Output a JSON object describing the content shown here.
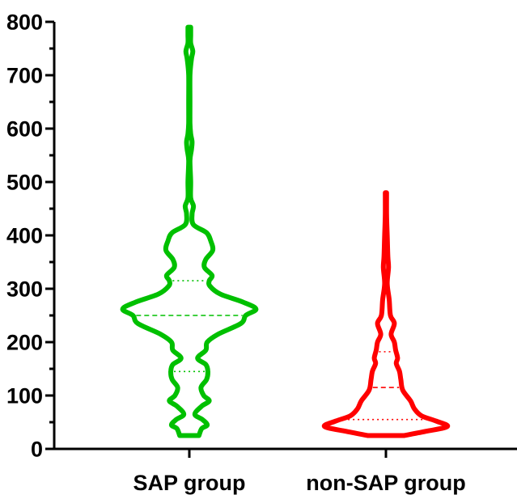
{
  "chart_data": {
    "type": "violin",
    "title": "",
    "xlabel": "",
    "ylabel": "",
    "ylim": [
      0,
      800
    ],
    "yticks": [
      0,
      100,
      200,
      300,
      400,
      500,
      600,
      700,
      800
    ],
    "ytick_labels": [
      "0",
      "100",
      "200",
      "300",
      "400",
      "500",
      "600",
      "700",
      "800"
    ],
    "categories": [
      "SAP group",
      "non-SAP group"
    ],
    "grid": false,
    "legend": "none",
    "series": [
      {
        "category": "SAP group",
        "color": "#00C000",
        "min": 25,
        "max": 790,
        "q1": 145,
        "median": 250,
        "q3": 315,
        "density_profile": [
          [
            25,
            0.14
          ],
          [
            38,
            0.18
          ],
          [
            45,
            0.26
          ],
          [
            55,
            0.19
          ],
          [
            65,
            0.08
          ],
          [
            80,
            0.18
          ],
          [
            90,
            0.29
          ],
          [
            100,
            0.21
          ],
          [
            115,
            0.17
          ],
          [
            130,
            0.25
          ],
          [
            145,
            0.27
          ],
          [
            158,
            0.24
          ],
          [
            170,
            0.12
          ],
          [
            185,
            0.24
          ],
          [
            200,
            0.26
          ],
          [
            215,
            0.42
          ],
          [
            235,
            0.75
          ],
          [
            250,
            0.82
          ],
          [
            262,
            0.97
          ],
          [
            275,
            0.78
          ],
          [
            290,
            0.45
          ],
          [
            305,
            0.3
          ],
          [
            315,
            0.29
          ],
          [
            325,
            0.33
          ],
          [
            340,
            0.22
          ],
          [
            355,
            0.24
          ],
          [
            372,
            0.34
          ],
          [
            390,
            0.31
          ],
          [
            405,
            0.25
          ],
          [
            420,
            0.06
          ],
          [
            440,
            0.04
          ],
          [
            455,
            0.06
          ],
          [
            470,
            0.02
          ],
          [
            500,
            0.02
          ],
          [
            540,
            0.01
          ],
          [
            560,
            0.03
          ],
          [
            575,
            0.04
          ],
          [
            590,
            0.02
          ],
          [
            610,
            0.01
          ],
          [
            650,
            0.01
          ],
          [
            700,
            0.01
          ],
          [
            730,
            0.03
          ],
          [
            745,
            0.05
          ],
          [
            760,
            0.02
          ],
          [
            775,
            0.02
          ],
          [
            790,
            0.02
          ]
        ]
      },
      {
        "category": "non-SAP group",
        "color": "#FF0000",
        "min": 25,
        "max": 480,
        "q1": 55,
        "median": 115,
        "q3": 182,
        "density_profile": [
          [
            25,
            0.28
          ],
          [
            33,
            0.62
          ],
          [
            42,
            0.95
          ],
          [
            52,
            0.78
          ],
          [
            62,
            0.55
          ],
          [
            75,
            0.44
          ],
          [
            90,
            0.38
          ],
          [
            110,
            0.26
          ],
          [
            130,
            0.23
          ],
          [
            145,
            0.21
          ],
          [
            160,
            0.16
          ],
          [
            170,
            0.18
          ],
          [
            185,
            0.15
          ],
          [
            200,
            0.13
          ],
          [
            215,
            0.08
          ],
          [
            235,
            0.13
          ],
          [
            250,
            0.07
          ],
          [
            280,
            0.05
          ],
          [
            310,
            0.02
          ],
          [
            340,
            0.04
          ],
          [
            360,
            0.03
          ],
          [
            400,
            0.02
          ],
          [
            440,
            0.01
          ],
          [
            480,
            0.01
          ]
        ]
      }
    ]
  }
}
